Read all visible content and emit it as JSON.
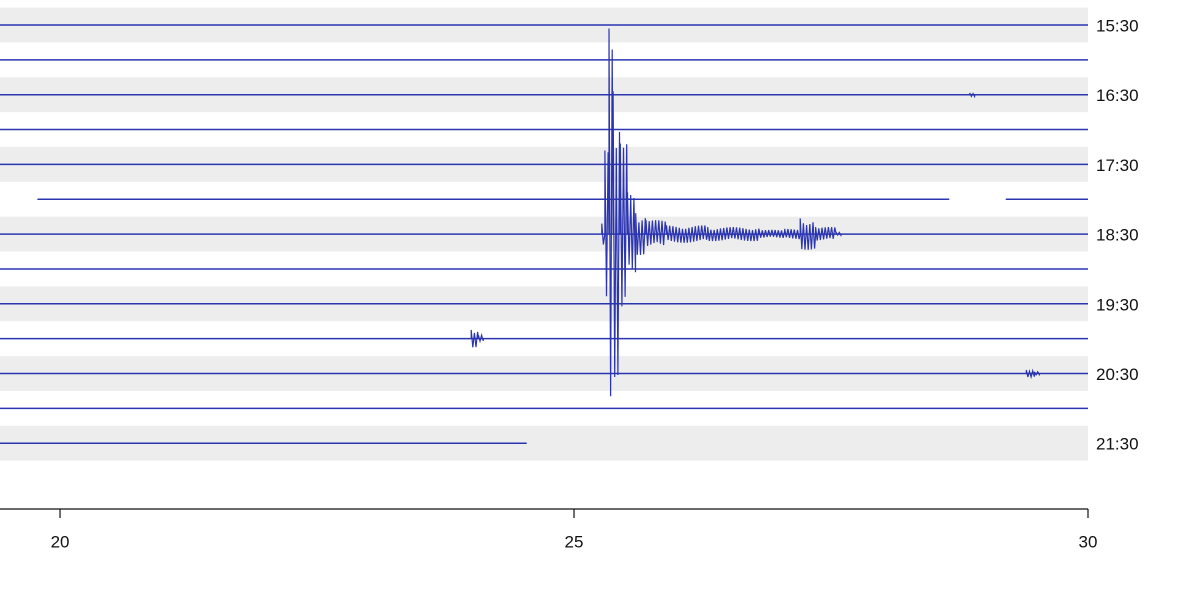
{
  "chart_data": {
    "type": "helicorder",
    "trace_color": "#2b35b0",
    "band_color": "#ededed",
    "xlim": [
      19.416,
      30
    ],
    "xticks": [
      20,
      25,
      30
    ],
    "rows": [
      {
        "label": "15:30",
        "segments": [
          [
            19.416,
            30
          ]
        ]
      },
      {
        "label": null,
        "segments": [
          [
            19.416,
            30
          ]
        ]
      },
      {
        "label": "16:30",
        "segments": [
          [
            19.416,
            30
          ]
        ]
      },
      {
        "label": null,
        "segments": [
          [
            19.416,
            30
          ]
        ]
      },
      {
        "label": "17:30",
        "segments": [
          [
            19.416,
            30
          ]
        ]
      },
      {
        "label": null,
        "segments": [
          [
            19.78,
            28.65
          ],
          [
            29.2,
            30
          ]
        ]
      },
      {
        "label": "18:30",
        "segments": [
          [
            19.416,
            30
          ]
        ]
      },
      {
        "label": null,
        "segments": [
          [
            19.416,
            30
          ]
        ]
      },
      {
        "label": "19:30",
        "segments": [
          [
            19.416,
            30
          ]
        ]
      },
      {
        "label": null,
        "segments": [
          [
            19.416,
            30
          ]
        ]
      },
      {
        "label": "20:30",
        "segments": [
          [
            19.416,
            30
          ]
        ]
      },
      {
        "label": null,
        "segments": [
          [
            19.416,
            30
          ]
        ]
      },
      {
        "label": "21:30",
        "segments": [
          [
            19.416,
            24.54
          ]
        ]
      }
    ],
    "events": [
      {
        "row": 6,
        "x": [
          25.27,
          25.3,
          25.34,
          25.38,
          25.45,
          25.52,
          25.6,
          25.7,
          25.9,
          26.3,
          26.8,
          27.05,
          27.2,
          27.35,
          27.55
        ],
        "amplitude": [
          0.3,
          2.4,
          5.9,
          4.1,
          2.6,
          1.2,
          0.6,
          0.4,
          0.25,
          0.2,
          0.12,
          0.15,
          0.45,
          0.2,
          0.05
        ]
      },
      {
        "row": 9,
        "x": [
          24.0,
          24.07
        ],
        "amplitude": [
          0.25,
          0.1
        ]
      },
      {
        "row": 10,
        "x": [
          29.4,
          29.48
        ],
        "amplitude": [
          0.1,
          0.05
        ]
      },
      {
        "row": 2,
        "x": [
          28.85
        ],
        "amplitude": [
          0.05
        ]
      }
    ]
  }
}
